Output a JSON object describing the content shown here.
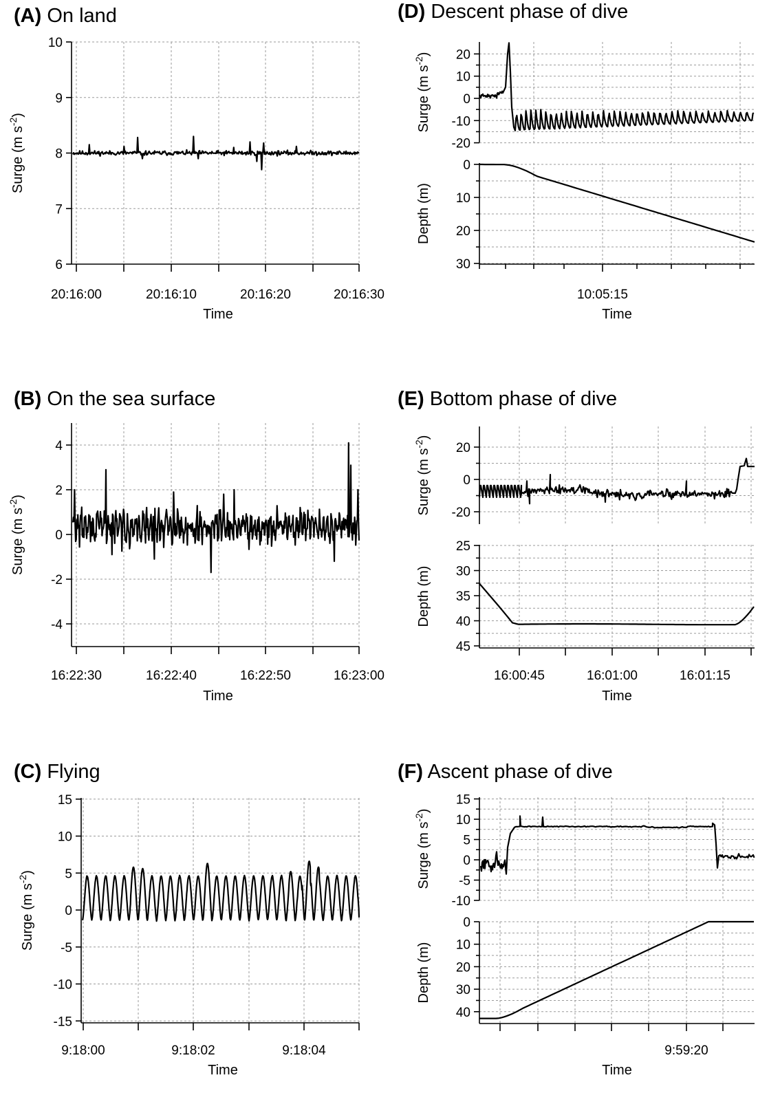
{
  "chart_data": [
    {
      "type": "line",
      "panel": "A",
      "letter": "(A)",
      "title": "On land",
      "xlabel": "Time",
      "x_ticks": [
        "20:16:00",
        "20:16:10",
        "20:16:20",
        "20:16:30"
      ],
      "xlim": [
        "20:16:00",
        "20:16:30"
      ],
      "tracks": [
        {
          "ylabel": "Surge (m s",
          "ylabel_sup": "-2",
          "ylabel_end": ")",
          "ylim": [
            6,
            10
          ],
          "yticks": [
            6,
            7,
            8,
            9,
            10
          ],
          "series": [
            {
              "x_seconds": [
                0,
                3.6,
                7.0,
                12.3,
                19.7,
                30
              ],
              "values": [
                8.0,
                8.2,
                8.25,
                8.3,
                7.7,
                8.0
              ],
              "description_mean": 8.0
            }
          ]
        }
      ]
    },
    {
      "type": "line",
      "panel": "B",
      "letter": "(B)",
      "title": "On the sea surface",
      "xlabel": "Time",
      "x_ticks": [
        "16:22:30",
        "16:22:40",
        "16:22:50",
        "16:23:00"
      ],
      "xlim": [
        "16:22:30",
        "16:23:00"
      ],
      "tracks": [
        {
          "ylabel": "Surge (m s",
          "ylabel_sup": "-2",
          "ylabel_end": ")",
          "ylim": [
            -5,
            5
          ],
          "yticks": [
            -4,
            -2,
            0,
            2,
            4
          ],
          "series": [
            {
              "x_seconds": [
                0,
                3.2,
                14.5,
                28.8,
                30
              ],
              "values": [
                0.5,
                2.9,
                -1.7,
                4.0,
                0.5
              ]
            }
          ]
        }
      ]
    },
    {
      "type": "line",
      "panel": "C",
      "letter": "(C)",
      "title": "Flying",
      "xlabel": "Time",
      "x_ticks": [
        "9:18:00",
        "9:18:02",
        "9:18:04"
      ],
      "xlim": [
        "9:18:00",
        "9:18:05"
      ],
      "tracks": [
        {
          "ylabel": "Surge (m s",
          "ylabel_sup": "-2",
          "ylabel_end": ")",
          "ylim": [
            -15,
            15
          ],
          "yticks": [
            -15,
            -10,
            -5,
            0,
            5,
            10,
            15
          ],
          "series": [
            {
              "x_seconds": [
                0,
                1.1,
                2.3,
                4.0,
                5.0
              ],
              "values": [
                4.0,
                5.8,
                6.3,
                6.6,
                -1.0
              ],
              "oscillation_range": [
                -1.5,
                5.0
              ]
            }
          ]
        }
      ]
    },
    {
      "type": "line",
      "panel": "D",
      "letter": "(D)",
      "title": "Descent phase of dive",
      "xlabel": "Time",
      "x_ticks": [
        "10:05:15"
      ],
      "tracks": [
        {
          "ylabel": "Surge (m s",
          "ylabel_sup": "-2",
          "ylabel_end": ")",
          "ylim": [
            -20,
            25
          ],
          "yticks": [
            -20,
            -10,
            0,
            10,
            20
          ],
          "series": [
            {
              "x_relative": [
                0,
                0.1,
                0.115,
                0.135,
                1.0
              ],
              "values": [
                1,
                2,
                25,
                -15,
                -10
              ]
            }
          ]
        },
        {
          "ylabel": "Depth (m)",
          "ylim": [
            30,
            0
          ],
          "yticks": [
            0,
            10,
            20,
            30
          ],
          "series": [
            {
              "x_relative": [
                0,
                0.09,
                0.2,
                0.45,
                0.75,
                1.0
              ],
              "values": [
                0,
                0.2,
                3.5,
                10,
                17,
                23.5
              ]
            }
          ]
        }
      ]
    },
    {
      "type": "line",
      "panel": "E",
      "letter": "(E)",
      "title": "Bottom phase of dive",
      "xlabel": "Time",
      "x_ticks": [
        "16:00:45",
        "16:01:00",
        "16:01:15"
      ],
      "tracks": [
        {
          "ylabel": "Surge (m s",
          "ylabel_sup": "-2",
          "ylabel_end": ")",
          "ylim": [
            -25,
            30
          ],
          "yticks": [
            -20,
            0,
            20
          ],
          "series": [
            {
              "x_relative": [
                0,
                0.15,
                0.25,
                0.94,
                0.955,
                0.97,
                1.0
              ],
              "values": [
                -10,
                -10,
                2,
                -5,
                8,
                13,
                8
              ]
            }
          ]
        },
        {
          "ylabel": "Depth (m)",
          "ylim": [
            45,
            25
          ],
          "yticks": [
            25,
            30,
            35,
            40,
            45
          ],
          "series": [
            {
              "x_relative": [
                0,
                0.14,
                0.5,
                0.93,
                1.0
              ],
              "values": [
                32.5,
                40.7,
                40.6,
                40.6,
                37
              ]
            }
          ]
        }
      ]
    },
    {
      "type": "line",
      "panel": "F",
      "letter": "(F)",
      "title": "Ascent phase of dive",
      "xlabel": "Time",
      "x_ticks": [
        "9:59:20"
      ],
      "tracks": [
        {
          "ylabel": "Surge (m s",
          "ylabel_sup": "-2",
          "ylabel_end": ")",
          "ylim": [
            -10,
            15
          ],
          "yticks": [
            -10,
            -5,
            0,
            5,
            10,
            15
          ],
          "series": [
            {
              "x_relative": [
                0,
                0.09,
                0.12,
                0.15,
                0.85,
                0.86,
                1.0
              ],
              "values": [
                -2,
                -3,
                8,
                10.5,
                9,
                -2,
                0.5
              ]
            }
          ]
        },
        {
          "ylabel": "Depth (m)",
          "ylim": [
            45,
            0
          ],
          "yticks": [
            0,
            10,
            20,
            30,
            40
          ],
          "series": [
            {
              "x_relative": [
                0,
                0.06,
                0.5,
                0.83,
                1.0
              ],
              "values": [
                43,
                43,
                26,
                0,
                0
              ]
            }
          ]
        }
      ]
    }
  ]
}
